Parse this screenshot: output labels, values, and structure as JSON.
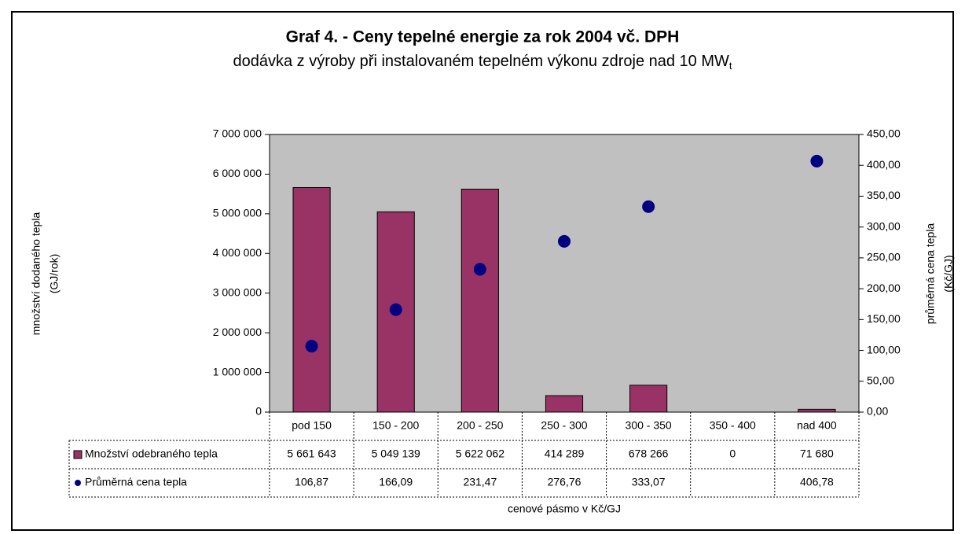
{
  "chart_data": {
    "type": "bar",
    "title": "Graf 4. - Ceny tepelné energie za rok 2004 vč. DPH",
    "subtitle": "dodávka z výroby při instalovaném tepelném výkonu zdroje nad 10 MW",
    "subtitle_subscript": "t",
    "xlabel": "cenové pásmo v Kč/GJ",
    "ylabel": [
      "množství dodaného tepla",
      "(GJ/rok)"
    ],
    "y2label": [
      "průměrná cena tepla",
      "(Kč/GJ)"
    ],
    "categories": [
      "pod 150",
      "150 - 200",
      "200 - 250",
      "250 - 300",
      "300 - 350",
      "350 - 400",
      "nad 400"
    ],
    "series": [
      {
        "name": "Množství odebraného tepla",
        "type": "bar",
        "color": "#993366",
        "values": [
          5661643,
          5049139,
          5622062,
          414289,
          678266,
          0,
          71680
        ],
        "value_labels": [
          "5 661 643",
          "5 049 139",
          "5 622 062",
          "414 289",
          "678 266",
          "0",
          "71 680"
        ]
      },
      {
        "name": "Průměrná cena tepla",
        "type": "scatter",
        "axis": "y2",
        "color": "#000080",
        "values": [
          106.87,
          166.09,
          231.47,
          276.76,
          333.07,
          null,
          406.78
        ],
        "value_labels": [
          "106,87",
          "166,09",
          "231,47",
          "276,76",
          "333,07",
          null,
          "406,78"
        ]
      }
    ],
    "ylim": [
      0,
      7000000
    ],
    "yticks": [
      0,
      {
        "value": 1000000,
        "label": "1 000 000"
      },
      {
        "value": 2000000,
        "label": "2 000 000"
      },
      {
        "value": 3000000,
        "label": "3 000 000"
      },
      {
        "value": 4000000,
        "label": "4 000 000"
      },
      {
        "value": 5000000,
        "label": "5 000 000"
      },
      {
        "value": 6000000,
        "label": "6 000 000"
      },
      {
        "value": 7000000,
        "label": "7 000 000"
      }
    ],
    "y2lim": [
      0,
      450
    ],
    "y2ticks": [
      {
        "value": 0,
        "label": "0,00"
      },
      {
        "value": 50,
        "label": "50,00"
      },
      {
        "value": 100,
        "label": "100,00"
      },
      {
        "value": 150,
        "label": "150,00"
      },
      {
        "value": 200,
        "label": "200,00"
      },
      {
        "value": 250,
        "label": "250,00"
      },
      {
        "value": 300,
        "label": "300,00"
      },
      {
        "value": 350,
        "label": "350,00"
      },
      {
        "value": 400,
        "label": "400,00"
      },
      {
        "value": 450,
        "label": "450,00"
      }
    ],
    "plot_background": "#c0c0c0",
    "data_table": true
  }
}
